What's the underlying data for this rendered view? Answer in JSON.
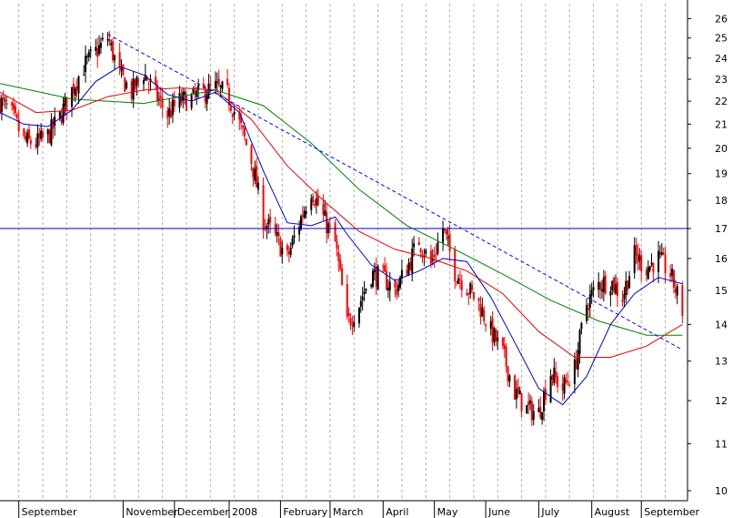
{
  "chart_data": {
    "type": "candlestick",
    "title": "",
    "ylim": [
      9.8,
      26.8
    ],
    "y_scale": "log",
    "y_ticks": [
      10,
      11,
      12,
      13,
      14,
      15,
      16,
      17,
      18,
      19,
      20,
      21,
      22,
      23,
      24,
      25,
      26
    ],
    "x_range": [
      "2007-08-20",
      "2008-09-25"
    ],
    "x_month_labels": [
      {
        "label": "September",
        "date": "2007-08-31"
      },
      {
        "label": "November",
        "date": "2007-10-31"
      },
      {
        "label": "December",
        "date": "2007-11-30"
      },
      {
        "label": "2008",
        "date": "2008-01-01"
      },
      {
        "label": "February",
        "date": "2008-01-31"
      },
      {
        "label": "March",
        "date": "2008-02-29"
      },
      {
        "label": "April",
        "date": "2008-03-31"
      },
      {
        "label": "May",
        "date": "2008-04-30"
      },
      {
        "label": "June",
        "date": "2008-05-30"
      },
      {
        "label": "July",
        "date": "2008-06-30"
      },
      {
        "label": "August",
        "date": "2008-07-31"
      },
      {
        "label": "September",
        "date": "2008-08-29"
      }
    ],
    "grid": "vertical dashed",
    "price_path": [
      [
        "2007-08-20",
        22.0
      ],
      [
        "2007-08-27",
        21.4
      ],
      [
        "2007-09-03",
        20.3
      ],
      [
        "2007-09-10",
        20.2
      ],
      [
        "2007-09-17",
        20.5
      ],
      [
        "2007-09-24",
        21.3
      ],
      [
        "2007-10-01",
        22.5
      ],
      [
        "2007-10-08",
        23.6
      ],
      [
        "2007-10-15",
        24.3
      ],
      [
        "2007-10-22",
        25.0
      ],
      [
        "2007-10-29",
        23.2
      ],
      [
        "2007-11-05",
        22.4
      ],
      [
        "2007-11-12",
        23.3
      ],
      [
        "2007-11-19",
        22.3
      ],
      [
        "2007-11-26",
        21.4
      ],
      [
        "2007-12-03",
        22.0
      ],
      [
        "2007-12-10",
        22.1
      ],
      [
        "2007-12-17",
        22.4
      ],
      [
        "2007-12-24",
        22.6
      ],
      [
        "2007-12-31",
        22.3
      ],
      [
        "2008-01-07",
        21.0
      ],
      [
        "2008-01-14",
        19.5
      ],
      [
        "2008-01-21",
        17.3
      ],
      [
        "2008-01-28",
        16.7
      ],
      [
        "2008-02-04",
        16.0
      ],
      [
        "2008-02-11",
        17.2
      ],
      [
        "2008-02-18",
        18.4
      ],
      [
        "2008-02-25",
        17.4
      ],
      [
        "2008-03-03",
        16.5
      ],
      [
        "2008-03-10",
        14.0
      ],
      [
        "2008-03-17",
        14.6
      ],
      [
        "2008-03-24",
        15.5
      ],
      [
        "2008-03-31",
        15.4
      ],
      [
        "2008-04-07",
        15.0
      ],
      [
        "2008-04-14",
        15.7
      ],
      [
        "2008-04-21",
        16.6
      ],
      [
        "2008-04-28",
        15.8
      ],
      [
        "2008-05-05",
        17.0
      ],
      [
        "2008-05-12",
        15.6
      ],
      [
        "2008-05-19",
        15.1
      ],
      [
        "2008-05-26",
        14.6
      ],
      [
        "2008-06-02",
        13.8
      ],
      [
        "2008-06-09",
        13.2
      ],
      [
        "2008-06-16",
        12.2
      ],
      [
        "2008-06-23",
        11.8
      ],
      [
        "2008-06-30",
        11.7
      ],
      [
        "2008-07-07",
        12.7
      ],
      [
        "2008-07-14",
        12.3
      ],
      [
        "2008-07-21",
        12.8
      ],
      [
        "2008-07-28",
        14.6
      ],
      [
        "2008-08-04",
        15.2
      ],
      [
        "2008-08-11",
        15.3
      ],
      [
        "2008-08-18",
        14.8
      ],
      [
        "2008-08-25",
        16.1
      ],
      [
        "2008-09-01",
        15.7
      ],
      [
        "2008-09-08",
        16.0
      ],
      [
        "2008-09-15",
        15.5
      ],
      [
        "2008-09-22",
        14.4
      ]
    ],
    "ma_short": [
      [
        "2007-08-20",
        21.5
      ],
      [
        "2007-09-03",
        21.0
      ],
      [
        "2007-09-17",
        20.9
      ],
      [
        "2007-10-01",
        21.6
      ],
      [
        "2007-10-15",
        22.9
      ],
      [
        "2007-10-29",
        23.6
      ],
      [
        "2007-11-12",
        23.2
      ],
      [
        "2007-11-26",
        22.3
      ],
      [
        "2007-12-10",
        22.0
      ],
      [
        "2007-12-24",
        22.4
      ],
      [
        "2008-01-07",
        21.5
      ],
      [
        "2008-01-21",
        19.1
      ],
      [
        "2008-02-04",
        17.2
      ],
      [
        "2008-02-18",
        17.1
      ],
      [
        "2008-03-03",
        17.4
      ],
      [
        "2008-03-10",
        16.8
      ],
      [
        "2008-03-24",
        15.8
      ],
      [
        "2008-04-07",
        15.3
      ],
      [
        "2008-04-21",
        15.6
      ],
      [
        "2008-05-05",
        16.0
      ],
      [
        "2008-05-19",
        15.9
      ],
      [
        "2008-06-02",
        14.8
      ],
      [
        "2008-06-16",
        13.5
      ],
      [
        "2008-06-30",
        12.3
      ],
      [
        "2008-07-14",
        11.9
      ],
      [
        "2008-07-28",
        12.6
      ],
      [
        "2008-08-11",
        14.0
      ],
      [
        "2008-08-25",
        14.9
      ],
      [
        "2008-09-08",
        15.4
      ],
      [
        "2008-09-22",
        15.2
      ]
    ],
    "ma_medium": [
      [
        "2007-08-20",
        22.4
      ],
      [
        "2007-09-10",
        21.5
      ],
      [
        "2007-10-01",
        21.6
      ],
      [
        "2007-10-22",
        22.2
      ],
      [
        "2007-11-12",
        22.5
      ],
      [
        "2007-12-03",
        22.6
      ],
      [
        "2007-12-24",
        22.5
      ],
      [
        "2008-01-14",
        21.2
      ],
      [
        "2008-02-04",
        19.3
      ],
      [
        "2008-02-25",
        18.0
      ],
      [
        "2008-03-17",
        16.9
      ],
      [
        "2008-04-07",
        16.3
      ],
      [
        "2008-04-28",
        16.0
      ],
      [
        "2008-05-19",
        15.6
      ],
      [
        "2008-06-09",
        14.9
      ],
      [
        "2008-06-30",
        13.8
      ],
      [
        "2008-07-21",
        13.1
      ],
      [
        "2008-08-11",
        13.1
      ],
      [
        "2008-09-01",
        13.4
      ],
      [
        "2008-09-22",
        14.0
      ]
    ],
    "ma_long": [
      [
        "2007-08-20",
        22.8
      ],
      [
        "2007-10-01",
        22.1
      ],
      [
        "2007-11-12",
        21.9
      ],
      [
        "2007-12-24",
        22.5
      ],
      [
        "2008-01-21",
        21.8
      ],
      [
        "2008-02-18",
        20.2
      ],
      [
        "2008-03-17",
        18.4
      ],
      [
        "2008-04-14",
        17.1
      ],
      [
        "2008-05-12",
        16.3
      ],
      [
        "2008-06-09",
        15.5
      ],
      [
        "2008-07-07",
        14.7
      ],
      [
        "2008-08-04",
        14.1
      ],
      [
        "2008-09-01",
        13.7
      ],
      [
        "2008-09-22",
        13.7
      ]
    ],
    "horizontal_line": 17.0,
    "trendline": [
      [
        "2007-10-22",
        25.2
      ],
      [
        "2008-09-22",
        13.3
      ]
    ],
    "colors": {
      "up_candle": "#000000",
      "down_candle": "#ff0000",
      "ma_short": "#0000cc",
      "ma_medium": "#ee0000",
      "ma_long": "#008000",
      "horizontal_line": "#0000cc",
      "trendline": "#0000ff",
      "grid": "#b0b0b0",
      "background": "#ffffff"
    }
  }
}
